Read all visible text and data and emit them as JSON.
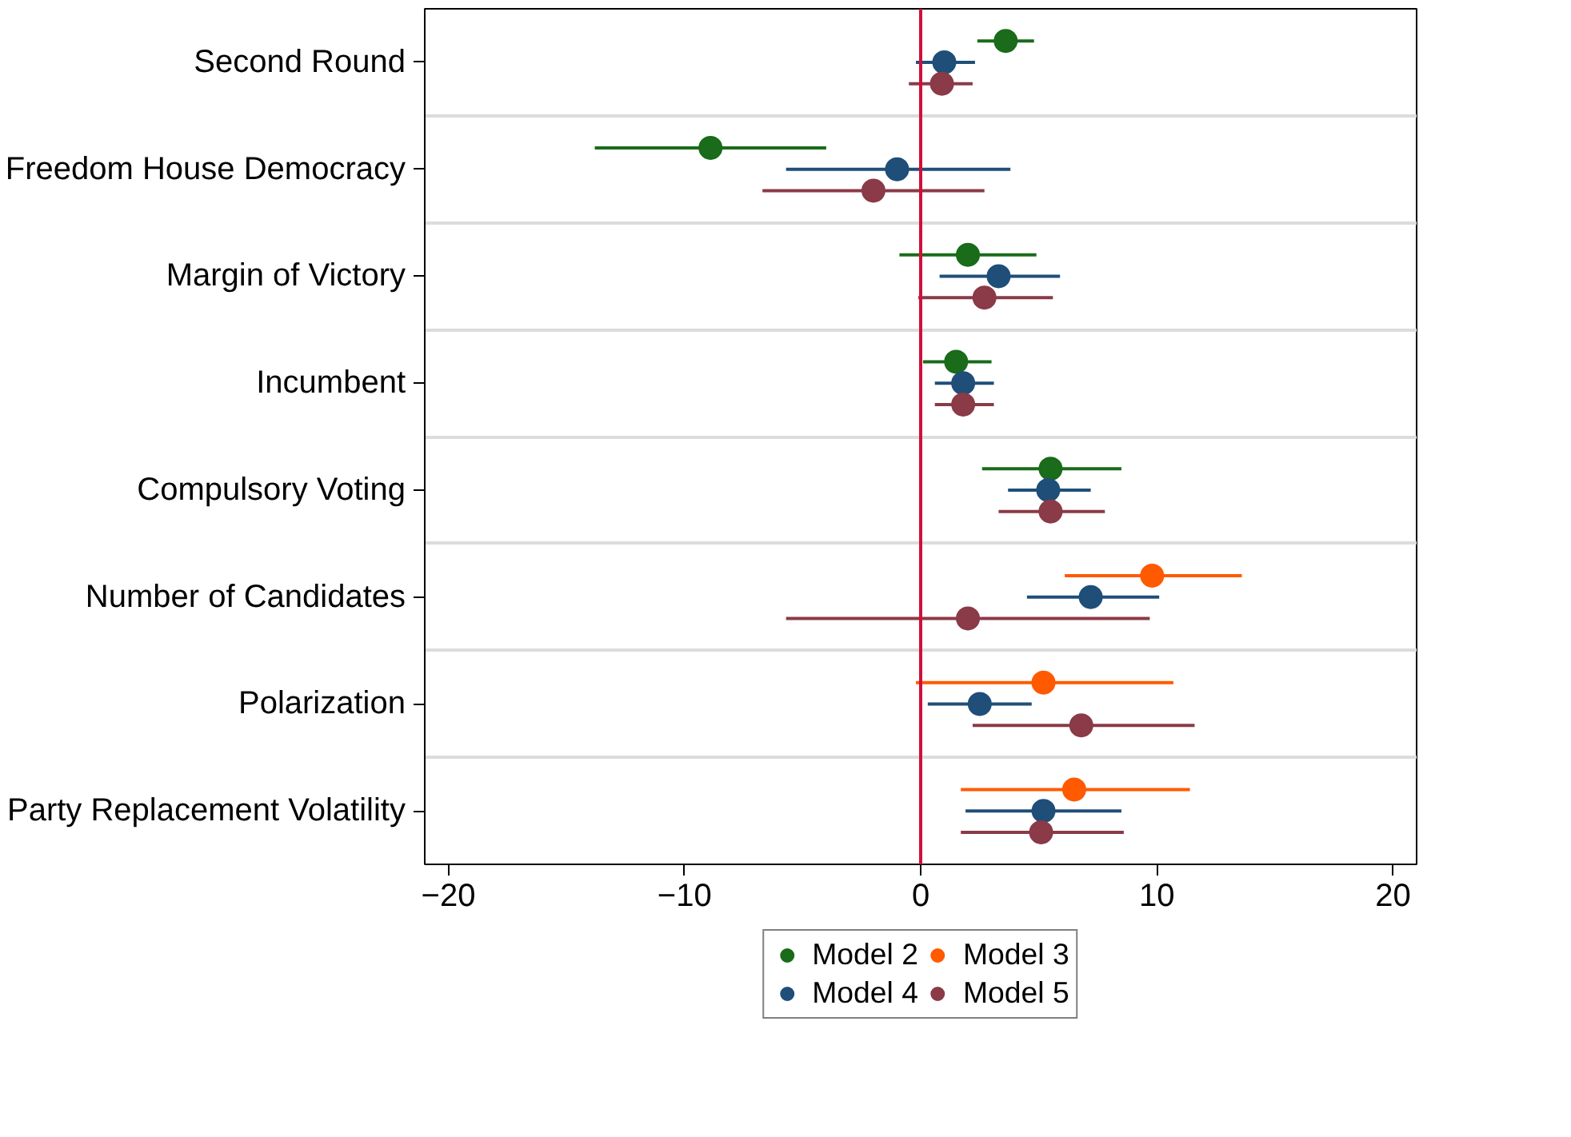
{
  "chart_data": {
    "type": "scatter",
    "orientation": "horizontal",
    "categories": [
      "Second Round",
      "Freedom House Democracy",
      "Margin of Victory",
      "Incumbent",
      "Compulsory Voting",
      "Number of Candidates",
      "Polarization",
      "Party Replacement Volatility"
    ],
    "series": [
      {
        "name": "Model 2",
        "color": "#1a6b1a",
        "values": [
          3.6,
          -8.9,
          2.0,
          1.5,
          5.5,
          null,
          null,
          null
        ],
        "errors": [
          [
            2.4,
            4.8
          ],
          [
            -13.8,
            -4.0
          ],
          [
            -0.9,
            4.9
          ],
          [
            0.1,
            3.0
          ],
          [
            2.6,
            8.5
          ],
          null,
          null,
          null
        ]
      },
      {
        "name": "Model 3",
        "color": "#ff5a00",
        "values": [
          null,
          null,
          null,
          null,
          null,
          9.8,
          5.2,
          6.5
        ],
        "errors": [
          null,
          null,
          null,
          null,
          null,
          [
            6.1,
            13.6
          ],
          [
            -0.2,
            10.7
          ],
          [
            1.7,
            11.4
          ]
        ]
      },
      {
        "name": "Model 4",
        "color": "#1f4e79",
        "values": [
          1.0,
          -1.0,
          3.3,
          1.8,
          5.4,
          7.2,
          2.5,
          5.2
        ],
        "errors": [
          [
            -0.2,
            2.3
          ],
          [
            -5.7,
            3.8
          ],
          [
            0.8,
            5.9
          ],
          [
            0.6,
            3.1
          ],
          [
            3.7,
            7.2
          ],
          [
            4.5,
            10.1
          ],
          [
            0.3,
            4.7
          ],
          [
            1.9,
            8.5
          ]
        ]
      },
      {
        "name": "Model 5",
        "color": "#8b3a48",
        "values": [
          0.9,
          -2.0,
          2.7,
          1.8,
          5.5,
          2.0,
          6.8,
          5.1
        ],
        "errors": [
          [
            -0.5,
            2.2
          ],
          [
            -6.7,
            2.7
          ],
          [
            -0.1,
            5.6
          ],
          [
            0.6,
            3.1
          ],
          [
            3.3,
            7.8
          ],
          [
            -5.7,
            9.7
          ],
          [
            2.2,
            11.6
          ],
          [
            1.7,
            8.6
          ]
        ]
      }
    ],
    "xlim": [
      -21,
      21
    ],
    "xticks": [
      -20,
      -10,
      0,
      10,
      20
    ],
    "ref_lines": [
      {
        "axis": "x",
        "value": 0,
        "color": "#d0103a"
      }
    ],
    "grid": "y",
    "legend": "bottom",
    "marker": "circle"
  }
}
